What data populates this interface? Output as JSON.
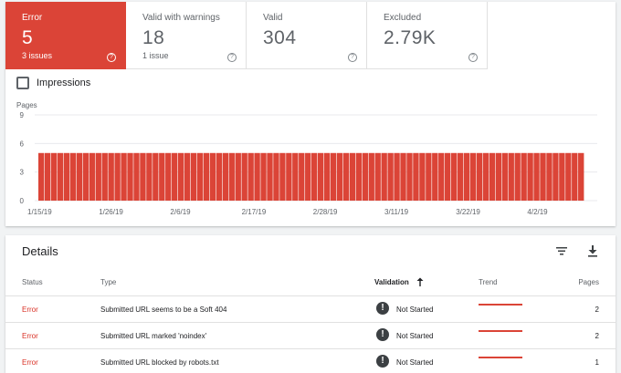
{
  "tiles": [
    {
      "label": "Error",
      "value": "5",
      "sub": "3 issues"
    },
    {
      "label": "Valid with warnings",
      "value": "18",
      "sub": "1 issue"
    },
    {
      "label": "Valid",
      "value": "304",
      "sub": ""
    },
    {
      "label": "Excluded",
      "value": "2.79K",
      "sub": ""
    }
  ],
  "help_glyph": "?",
  "impressions_label": "Impressions",
  "chart_data": {
    "type": "bar",
    "ylabel": "Pages",
    "yticks": [
      "0",
      "3",
      "6",
      "9"
    ],
    "ylim": [
      0,
      9
    ],
    "xticks": [
      "1/15/19",
      "1/26/19",
      "2/6/19",
      "2/17/19",
      "2/28/19",
      "3/11/19",
      "3/22/19",
      "4/2/19"
    ],
    "x_start": "1/15/19",
    "x_end": "4/10/19",
    "values": [
      5,
      5,
      5,
      5,
      5,
      5,
      5,
      5,
      5,
      5,
      5,
      5,
      5,
      5,
      5,
      5,
      5,
      5,
      5,
      5,
      5,
      5,
      5,
      5,
      5,
      5,
      5,
      5,
      5,
      5,
      5,
      5,
      5,
      5,
      5,
      5,
      5,
      5,
      5,
      5,
      5,
      5,
      5,
      5,
      5,
      5,
      5,
      5,
      5,
      5,
      5,
      5,
      5,
      5,
      5,
      5,
      5,
      5,
      5,
      5,
      5,
      5,
      5,
      5,
      5,
      5,
      5,
      5,
      5,
      5,
      5,
      5,
      5,
      5,
      5,
      5,
      5,
      5,
      5,
      5,
      5,
      5,
      5,
      5,
      5,
      5
    ],
    "color": "#db4437",
    "grid": true
  },
  "details": {
    "title": "Details",
    "icons": [
      "filter-icon",
      "download-icon"
    ],
    "columns": {
      "status": "Status",
      "type": "Type",
      "validation": "Validation",
      "trend": "Trend",
      "pages": "Pages"
    },
    "rows": [
      {
        "status": "Error",
        "type": "Submitted URL seems to be a Soft 404",
        "validation": "Not Started",
        "pages": "2"
      },
      {
        "status": "Error",
        "type": "Submitted URL marked 'noindex'",
        "validation": "Not Started",
        "pages": "2"
      },
      {
        "status": "Error",
        "type": "Submitted URL blocked by robots.txt",
        "validation": "Not Started",
        "pages": "1"
      }
    ]
  },
  "colors": {
    "error": "#db4437",
    "status_text": "#d93025"
  }
}
